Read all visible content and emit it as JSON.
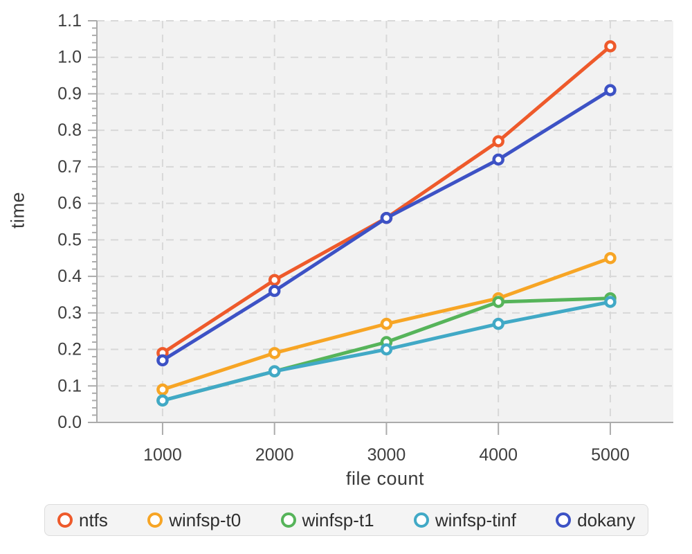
{
  "chart_data": {
    "type": "line",
    "title": "",
    "xlabel": "file count",
    "ylabel": "time",
    "x": [
      1000,
      2000,
      3000,
      4000,
      5000
    ],
    "series": [
      {
        "name": "ntfs",
        "color": "#EE5A2B",
        "values": [
          0.19,
          0.39,
          0.56,
          0.77,
          1.03
        ]
      },
      {
        "name": "winfsp-t0",
        "color": "#F7A525",
        "values": [
          0.09,
          0.19,
          0.27,
          0.34,
          0.45
        ]
      },
      {
        "name": "winfsp-t1",
        "color": "#56B45A",
        "values": [
          0.06,
          0.14,
          0.22,
          0.33,
          0.34
        ]
      },
      {
        "name": "winfsp-tinf",
        "color": "#41A9C6",
        "values": [
          0.06,
          0.14,
          0.2,
          0.27,
          0.33
        ]
      },
      {
        "name": "dokany",
        "color": "#3D52C5",
        "values": [
          0.17,
          0.36,
          0.56,
          0.72,
          0.91
        ]
      }
    ],
    "xticks": [
      1000,
      2000,
      3000,
      4000,
      5000
    ],
    "x_tick_labels": [
      "1000",
      "2000",
      "3000",
      "4000",
      "5000"
    ],
    "yticks": [
      0.0,
      0.1,
      0.2,
      0.3,
      0.4,
      0.5,
      0.6,
      0.7,
      0.8,
      0.9,
      1.0,
      1.1
    ],
    "y_tick_labels": [
      "0.0",
      "0.1",
      "0.2",
      "0.3",
      "0.4",
      "0.5",
      "0.6",
      "0.7",
      "0.8",
      "0.9",
      "1.0",
      "1.1"
    ],
    "ylim": [
      0.0,
      1.1
    ],
    "xlim": [
      413,
      5563
    ],
    "y_minor_step": 0.02,
    "grid": true,
    "legend_position": "bottom",
    "marker_style": "open-circle",
    "colors": {
      "plot_background": "#f2f2f2",
      "gridline": "#d8d8d8",
      "axis_line": "#ababab",
      "tick_text": "#3f3f3f"
    }
  }
}
